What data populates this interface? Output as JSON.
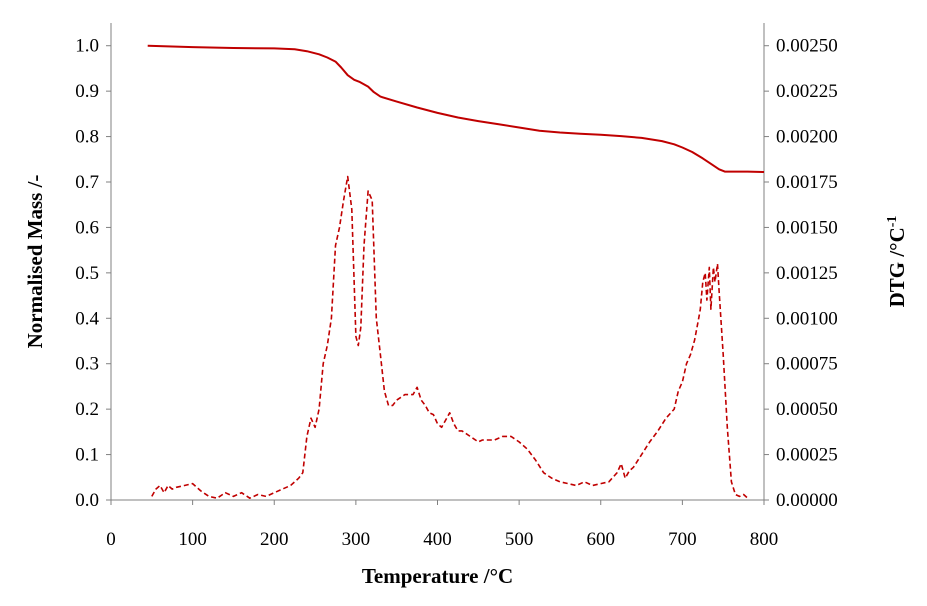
{
  "chart_data": {
    "type": "line",
    "title": "",
    "xlabel": "Temperature /°C",
    "ylabel": "Normalised Mass /-",
    "y2label_main": "DTG  /°C",
    "y2label_sup": "-1",
    "xlim": [
      0,
      800
    ],
    "ylim": [
      0,
      1.05
    ],
    "y2lim": [
      0,
      0.002625
    ],
    "x_ticks": [
      "0",
      "100",
      "200",
      "300",
      "400",
      "500",
      "600",
      "700",
      "800"
    ],
    "y_ticks": [
      "0.0",
      "0.1",
      "0.2",
      "0.3",
      "0.4",
      "0.5",
      "0.6",
      "0.7",
      "0.8",
      "0.9",
      "1.0"
    ],
    "y2_ticks": [
      "0.00000",
      "0.00025",
      "0.00050",
      "0.00075",
      "0.00100",
      "0.00125",
      "0.00150",
      "0.00175",
      "0.00200",
      "0.00225",
      "0.00250"
    ],
    "grid": false,
    "legend": "none",
    "color": "#c00000",
    "series": [
      {
        "axis": "left",
        "style": "solid",
        "x": [
          45,
          100,
          150,
          200,
          225,
          240,
          255,
          265,
          275,
          282,
          290,
          298,
          305,
          315,
          322,
          330,
          350,
          375,
          400,
          425,
          450,
          475,
          500,
          525,
          550,
          575,
          600,
          625,
          650,
          675,
          690,
          700,
          712,
          725,
          735,
          745,
          752,
          760,
          780,
          800
        ],
        "y": [
          1.0,
          0.997,
          0.995,
          0.994,
          0.992,
          0.988,
          0.981,
          0.974,
          0.965,
          0.952,
          0.935,
          0.925,
          0.92,
          0.91,
          0.898,
          0.888,
          0.877,
          0.864,
          0.852,
          0.842,
          0.834,
          0.827,
          0.82,
          0.813,
          0.809,
          0.806,
          0.804,
          0.801,
          0.797,
          0.79,
          0.783,
          0.776,
          0.766,
          0.752,
          0.74,
          0.728,
          0.723,
          0.723,
          0.723,
          0.722
        ]
      },
      {
        "axis": "right",
        "style": "dashed",
        "x": [
          50,
          55,
          60,
          65,
          70,
          75,
          80,
          90,
          100,
          110,
          120,
          130,
          140,
          150,
          160,
          170,
          180,
          190,
          200,
          210,
          220,
          230,
          235,
          240,
          245,
          250,
          255,
          260,
          265,
          270,
          275,
          280,
          285,
          290,
          295,
          300,
          303,
          306,
          310,
          315,
          320,
          325,
          330,
          335,
          340,
          345,
          350,
          360,
          370,
          375,
          380,
          385,
          390,
          395,
          400,
          405,
          410,
          415,
          420,
          425,
          430,
          440,
          450,
          455,
          460,
          470,
          480,
          490,
          500,
          510,
          520,
          530,
          540,
          550,
          560,
          570,
          580,
          590,
          600,
          610,
          620,
          625,
          630,
          635,
          640,
          650,
          660,
          670,
          680,
          690,
          695,
          700,
          705,
          710,
          715,
          720,
          722,
          725,
          728,
          730,
          733,
          735,
          738,
          740,
          743,
          745,
          750,
          755,
          760,
          765,
          770,
          775,
          780
        ],
        "y": [
          2e-05,
          6e-05,
          8e-05,
          4e-05,
          8e-05,
          6e-05,
          7e-05,
          8e-05,
          9e-05,
          5e-05,
          2e-05,
          1e-05,
          4e-05,
          2e-05,
          4e-05,
          1e-05,
          3e-05,
          2e-05,
          4e-05,
          6e-05,
          8e-05,
          0.00012,
          0.00015,
          0.00035,
          0.00045,
          0.0004,
          0.0005,
          0.00075,
          0.00085,
          0.001,
          0.0014,
          0.0015,
          0.00165,
          0.00178,
          0.0016,
          0.0009,
          0.00085,
          0.00095,
          0.0014,
          0.0017,
          0.00165,
          0.001,
          0.0008,
          0.0006,
          0.00052,
          0.00052,
          0.00055,
          0.00058,
          0.00058,
          0.00062,
          0.00055,
          0.00052,
          0.00048,
          0.00047,
          0.00042,
          0.0004,
          0.00044,
          0.00048,
          0.00042,
          0.00038,
          0.00038,
          0.00035,
          0.00032,
          0.00033,
          0.00033,
          0.00033,
          0.00035,
          0.00035,
          0.00032,
          0.00028,
          0.00022,
          0.00015,
          0.00012,
          0.0001,
          9e-05,
          8e-05,
          0.0001,
          8e-05,
          9e-05,
          0.0001,
          0.00015,
          0.0002,
          0.00012,
          0.00016,
          0.00018,
          0.00025,
          0.00032,
          0.00038,
          0.00045,
          0.0005,
          0.0006,
          0.00065,
          0.00075,
          0.0008,
          0.00088,
          0.001,
          0.00105,
          0.0012,
          0.00125,
          0.0011,
          0.00128,
          0.00105,
          0.00128,
          0.0012,
          0.0013,
          0.00115,
          0.0008,
          0.0004,
          0.0001,
          3e-05,
          2e-05,
          3e-05,
          1e-05
        ]
      }
    ]
  }
}
